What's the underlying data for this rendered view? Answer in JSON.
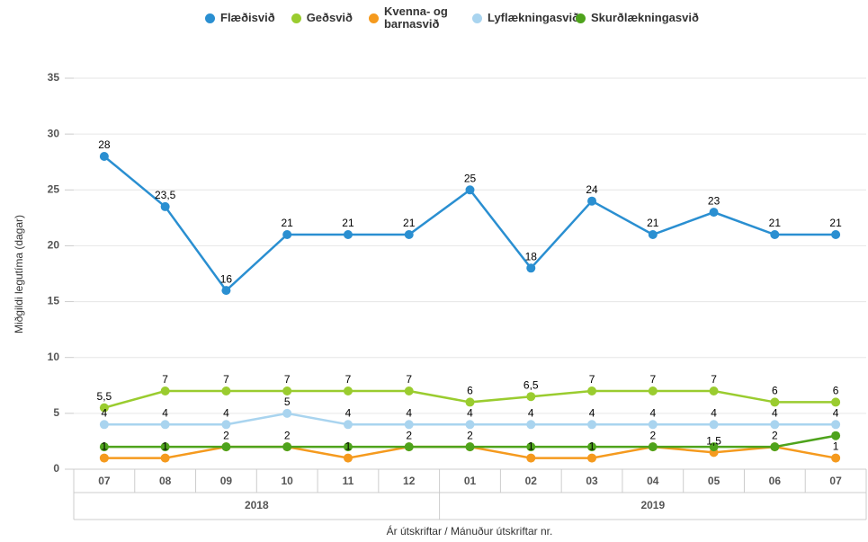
{
  "chart_data": {
    "type": "line",
    "y_label": "Miðgildi legutíma (dagar)",
    "x_label": "Ár útskriftar / Mánuður útskriftar nr.",
    "categories": [
      "07",
      "08",
      "09",
      "10",
      "11",
      "12",
      "01",
      "02",
      "03",
      "04",
      "05",
      "06",
      "07"
    ],
    "x_groups": [
      "2018",
      "2019"
    ],
    "ylim": [
      0,
      35
    ],
    "yticks": [
      0,
      5,
      10,
      15,
      20,
      25,
      30,
      35
    ],
    "grid": true,
    "legend": "top",
    "series": [
      {
        "name": "Flæðisvið",
        "color": "#2a8fd1",
        "values": [
          28,
          23.5,
          16,
          21,
          21,
          21,
          25,
          18,
          24,
          21,
          23,
          21,
          21
        ],
        "value_labels": [
          "28",
          "23,5",
          "16",
          "21",
          "21",
          "21",
          "25",
          "18",
          "24",
          "21",
          "23",
          "21",
          "21"
        ]
      },
      {
        "name": "Geðsvið",
        "color": "#9acc2f",
        "values": [
          5.5,
          7,
          7,
          7,
          7,
          7,
          6,
          6.5,
          7,
          7,
          7,
          6,
          6
        ],
        "value_labels": [
          "5,5",
          "7",
          "7",
          "7",
          "7",
          "7",
          "6",
          "6,5",
          "7",
          "7",
          "7",
          "6",
          "6"
        ]
      },
      {
        "name": "Kvenna- og barnasvið",
        "color": "#f59a1e",
        "values": [
          1,
          1,
          2,
          2,
          1,
          2,
          2,
          1,
          1,
          2,
          1.5,
          2,
          1
        ],
        "value_labels": [
          "1",
          "1",
          "2",
          "2",
          "1",
          "2",
          "2",
          "1",
          "1",
          "2",
          "1,5",
          "2",
          "1"
        ]
      },
      {
        "name": "Lyflækningasvið",
        "color": "#a9d4ef",
        "values": [
          4,
          4,
          4,
          5,
          4,
          4,
          4,
          4,
          4,
          4,
          4,
          4,
          4
        ],
        "value_labels": [
          "4",
          "4",
          "4",
          "5",
          "4",
          "4",
          "4",
          "4",
          "4",
          "4",
          "4",
          "4",
          "4"
        ]
      },
      {
        "name": "Skurðlækningasvið",
        "color": "#4ea31c",
        "values": [
          2,
          2,
          2,
          2,
          2,
          2,
          2,
          2,
          2,
          2,
          2,
          2,
          3
        ]
      }
    ]
  }
}
